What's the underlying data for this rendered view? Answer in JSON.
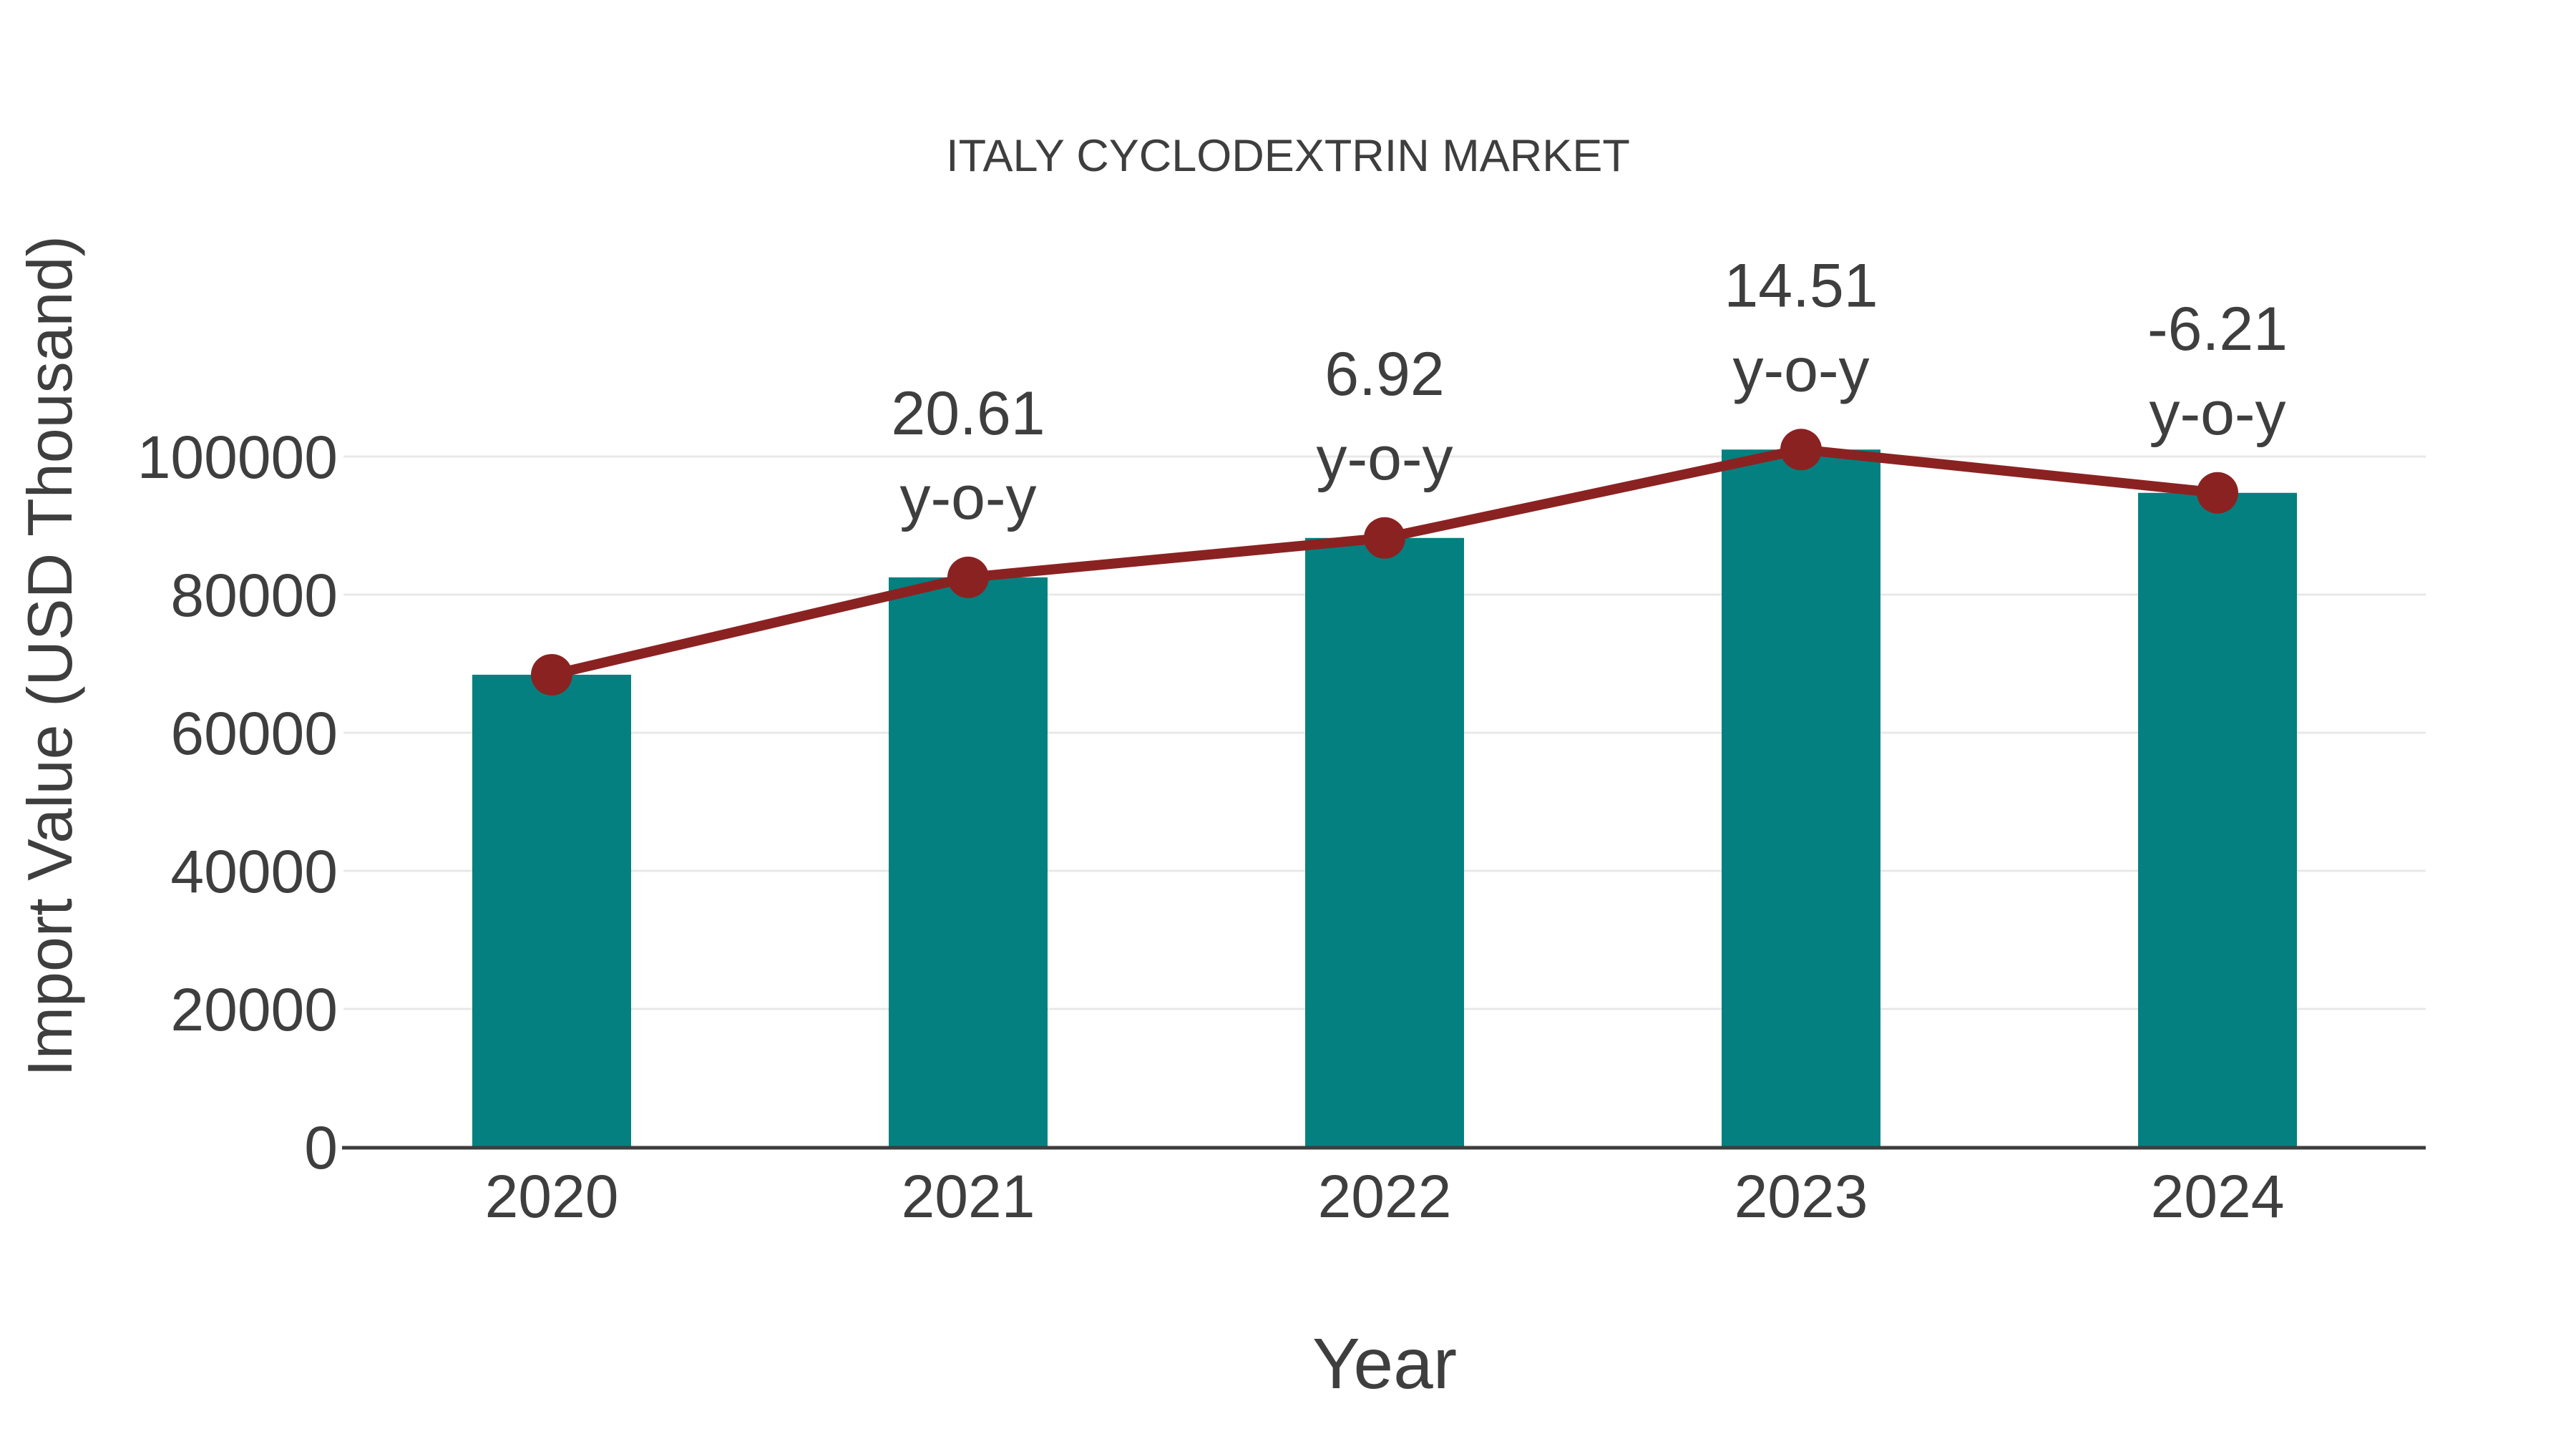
{
  "page": {
    "background": "#ffffff"
  },
  "chart_data": {
    "type": "bar",
    "title": "ITALY CYCLODEXTRIN MARKET",
    "xlabel": "Year",
    "ylabel": "Import Value (USD Thousand)",
    "categories": [
      "2020",
      "2021",
      "2022",
      "2023",
      "2024"
    ],
    "series": [
      {
        "name": "Import Value (USD Thousand)",
        "type": "bar",
        "color": "#058080",
        "values": [
          68400,
          82500,
          88210,
          101010,
          94740
        ]
      },
      {
        "name": "y-o-y trend",
        "type": "line",
        "color": "#8b2222",
        "values": [
          68400,
          82500,
          88210,
          101010,
          94740
        ]
      }
    ],
    "annotations": [
      null,
      "20.61",
      "6.92",
      "14.51",
      "-6.21"
    ],
    "annotation_suffix": "y-o-y",
    "yticks": [
      0,
      20000,
      40000,
      60000,
      80000,
      100000
    ],
    "ylim": [
      0,
      117000
    ],
    "grid": true,
    "legend_visible": false,
    "colors": {
      "bar": "#058080",
      "line": "#8b2222",
      "marker": "#8b2222",
      "text": "#3e3e3e",
      "gridline": "#e8e8e8",
      "axis_line": "#3d3d3d",
      "background": "#ffffff"
    }
  }
}
